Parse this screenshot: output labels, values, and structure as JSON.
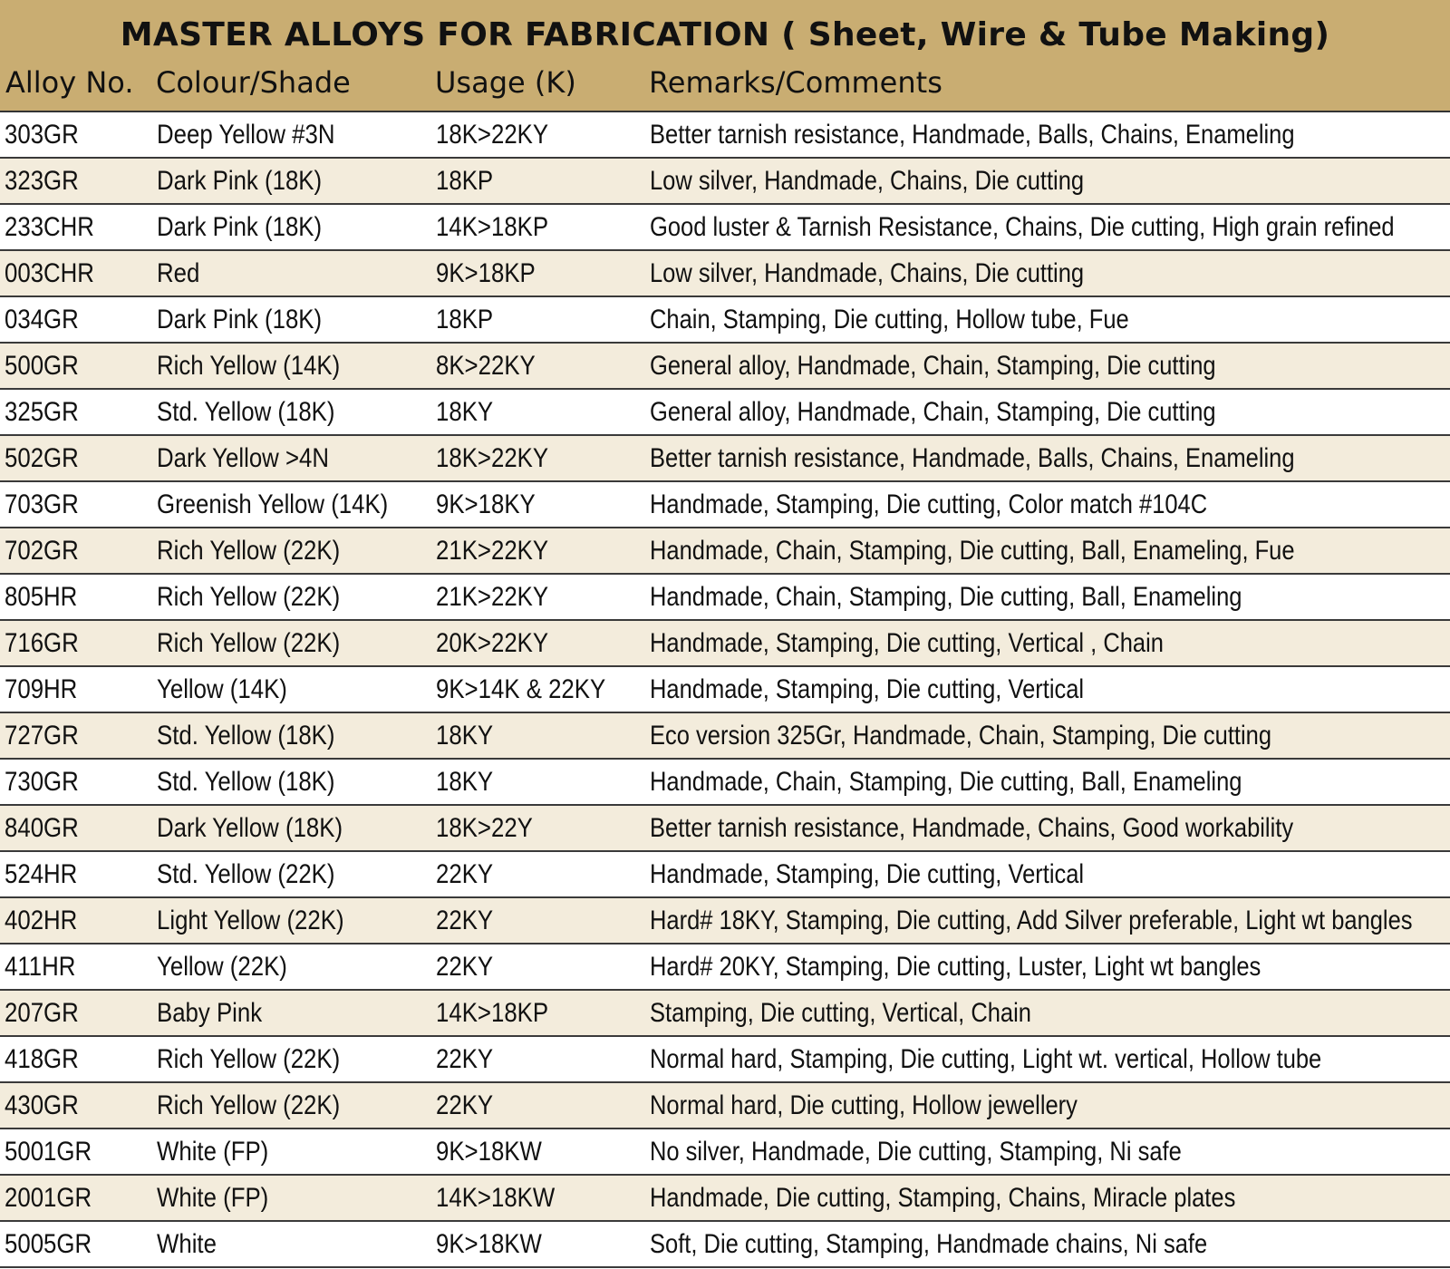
{
  "title": "MASTER ALLOYS FOR FABRICATION ( Sheet, Wire & Tube Making)",
  "columns": [
    "Alloy No.",
    "Colour/Shade",
    "Usage (K)",
    "Remarks/Comments"
  ],
  "rows": [
    [
      "303GR",
      "Deep Yellow #3N",
      "18K>22KY",
      "Better tarnish resistance, Handmade, Balls, Chains, Enameling"
    ],
    [
      "323GR",
      "Dark Pink (18K)",
      "18KP",
      "Low silver, Handmade, Chains, Die cutting"
    ],
    [
      "233CHR",
      "Dark Pink (18K)",
      "14K>18KP",
      "Good luster & Tarnish Resistance, Chains, Die cutting, High grain refined"
    ],
    [
      "003CHR",
      "Red",
      "9K>18KP",
      "Low silver, Handmade, Chains, Die cutting"
    ],
    [
      "034GR",
      "Dark Pink (18K)",
      "18KP",
      "Chain, Stamping, Die cutting, Hollow tube, Fue"
    ],
    [
      "500GR",
      "Rich Yellow (14K)",
      "8K>22KY",
      "General alloy, Handmade, Chain, Stamping, Die cutting"
    ],
    [
      "325GR",
      "Std. Yellow (18K)",
      "18KY",
      "General alloy, Handmade, Chain, Stamping, Die cutting"
    ],
    [
      "502GR",
      "Dark Yellow >4N",
      "18K>22KY",
      "Better tarnish resistance, Handmade, Balls, Chains, Enameling"
    ],
    [
      "703GR",
      "Greenish Yellow (14K)",
      "9K>18KY",
      "Handmade, Stamping, Die cutting, Color match #104C"
    ],
    [
      "702GR",
      "Rich Yellow (22K)",
      "21K>22KY",
      "Handmade, Chain, Stamping, Die cutting, Ball, Enameling, Fue"
    ],
    [
      "805HR",
      "Rich Yellow (22K)",
      "21K>22KY",
      "Handmade, Chain, Stamping, Die cutting, Ball, Enameling"
    ],
    [
      "716GR",
      "Rich Yellow (22K)",
      "20K>22KY",
      "Handmade, Stamping, Die cutting, Vertical , Chain"
    ],
    [
      "709HR",
      "Yellow (14K)",
      "9K>14K & 22KY",
      "Handmade, Stamping, Die cutting, Vertical"
    ],
    [
      "727GR",
      "Std. Yellow (18K)",
      "18KY",
      "Eco version 325Gr, Handmade, Chain, Stamping, Die cutting"
    ],
    [
      "730GR",
      "Std. Yellow (18K)",
      "18KY",
      "Handmade, Chain, Stamping, Die cutting, Ball, Enameling"
    ],
    [
      "840GR",
      "Dark Yellow (18K)",
      "18K>22Y",
      "Better tarnish resistance, Handmade, Chains, Good workability"
    ],
    [
      "524HR",
      "Std. Yellow (22K)",
      "22KY",
      "Handmade, Stamping, Die cutting, Vertical"
    ],
    [
      "402HR",
      "Light Yellow (22K)",
      "22KY",
      "Hard# 18KY, Stamping, Die cutting, Add Silver preferable, Light wt bangles"
    ],
    [
      "411HR",
      " Yellow (22K)",
      "22KY",
      "Hard# 20KY, Stamping, Die cutting, Luster, Light wt bangles"
    ],
    [
      "207GR",
      "Baby Pink",
      "14K>18KP",
      "Stamping, Die cutting, Vertical, Chain"
    ],
    [
      "418GR",
      "Rich Yellow (22K)",
      "22KY",
      "Normal hard, Stamping, Die cutting, Light wt. vertical, Hollow tube"
    ],
    [
      "430GR",
      "Rich Yellow (22K)",
      "22KY",
      "Normal hard, Die cutting, Hollow jewellery"
    ],
    [
      "5001GR",
      "White (FP)",
      "9K>18KW",
      "No silver, Handmade, Die cutting, Stamping, Ni safe"
    ],
    [
      "2001GR",
      "White (FP)",
      "14K>18KW",
      "Handmade, Die cutting, Stamping, Chains, Miracle plates"
    ],
    [
      "5005GR",
      "White",
      "9K>18KW",
      "Soft, Die cutting, Stamping, Handmade chains, Ni safe"
    ]
  ],
  "colors": {
    "header_bg": "#c9ad72",
    "stripe": "#f3ecdc",
    "rule": "#3a3a3a"
  }
}
